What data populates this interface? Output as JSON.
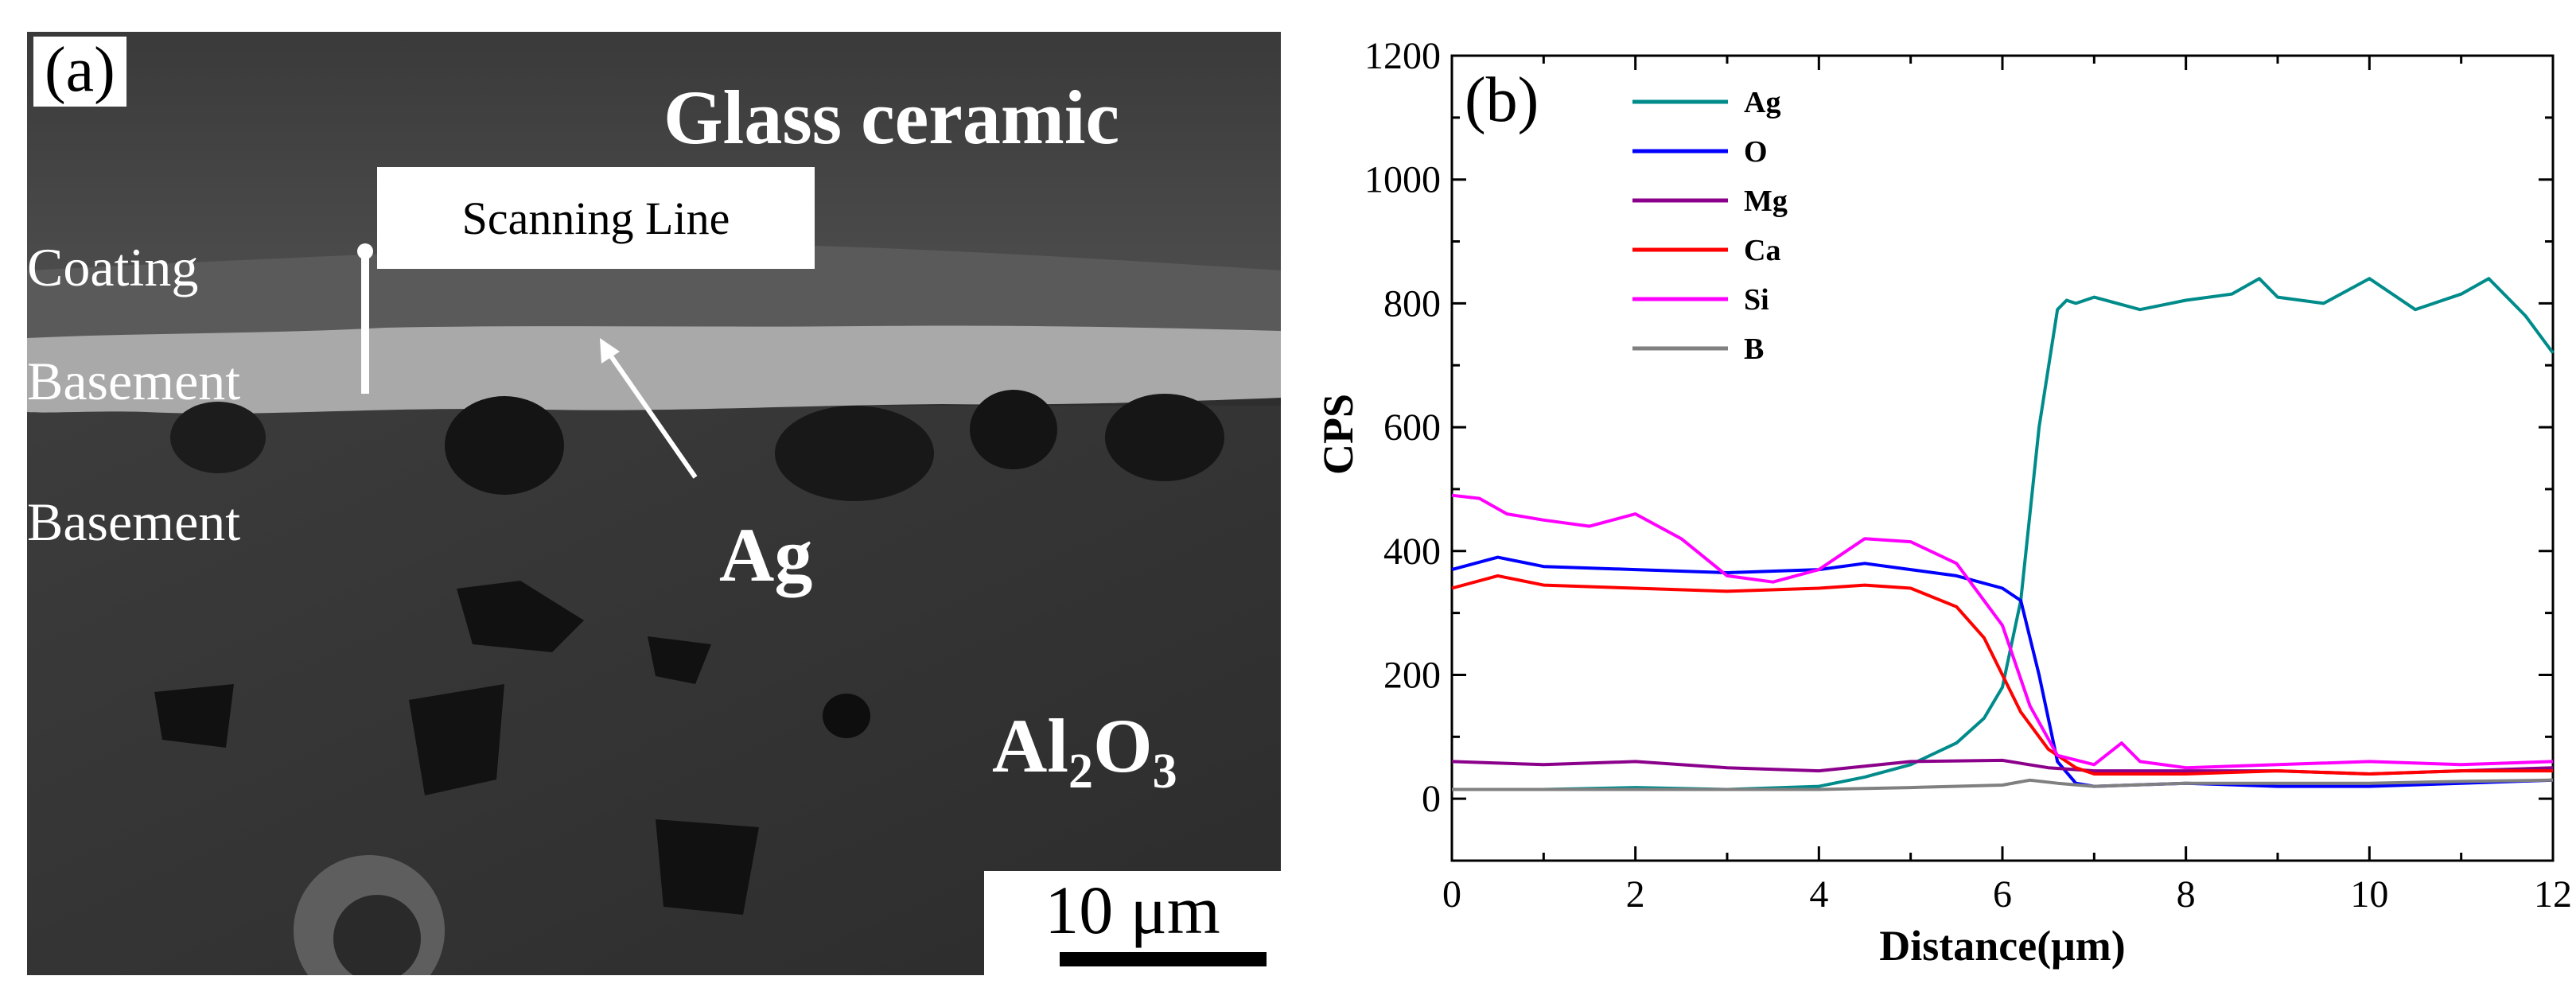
{
  "panel_a": {
    "label": "(a)",
    "glass_ceramic": "Glass ceramic",
    "scanning_line": "Scanning Line",
    "coating": "Coating",
    "basement_1": "Basement",
    "basement_2": "Basement",
    "ag": "Ag",
    "al2o3_al": "Al",
    "al2o3_sub1": "2",
    "al2o3_o": "O",
    "al2o3_sub2": "3",
    "scale_bar": "10 μm"
  },
  "chart_data": {
    "type": "line",
    "panel_label": "(b)",
    "xlabel": "Distance(μm)",
    "ylabel": "CPS",
    "xlim": [
      0,
      12
    ],
    "ylim": [
      -100,
      1200
    ],
    "x_ticks": [
      "0",
      "2",
      "4",
      "6",
      "8",
      "10",
      "12"
    ],
    "y_ticks": [
      "0",
      "200",
      "400",
      "600",
      "800",
      "1000",
      "1200"
    ],
    "legend_position": "top-left",
    "series": [
      {
        "name": "Ag",
        "color": "#008b8b",
        "x": [
          0,
          1,
          2,
          3,
          4,
          4.5,
          5,
          5.5,
          5.8,
          6,
          6.2,
          6.4,
          6.6,
          6.7,
          6.8,
          7,
          7.5,
          8,
          8.5,
          8.8,
          9,
          9.5,
          10,
          10.5,
          11,
          11.3,
          11.7,
          12
        ],
        "y": [
          15,
          15,
          18,
          15,
          20,
          35,
          55,
          90,
          130,
          180,
          320,
          600,
          790,
          805,
          800,
          810,
          790,
          805,
          815,
          840,
          810,
          800,
          840,
          790,
          815,
          840,
          780,
          720
        ]
      },
      {
        "name": "O",
        "color": "#0000ff",
        "x": [
          0,
          0.5,
          1,
          2,
          3,
          4,
          4.5,
          5,
          5.5,
          6,
          6.2,
          6.4,
          6.6,
          6.8,
          7,
          8,
          9,
          10,
          11,
          12
        ],
        "y": [
          370,
          390,
          375,
          370,
          365,
          370,
          380,
          370,
          360,
          340,
          320,
          200,
          60,
          25,
          20,
          25,
          20,
          20,
          25,
          30
        ]
      },
      {
        "name": "Mg",
        "color": "#8b008b",
        "x": [
          0,
          1,
          2,
          3,
          4,
          5,
          6,
          6.5,
          7,
          8,
          9,
          10,
          11,
          12
        ],
        "y": [
          60,
          55,
          60,
          50,
          45,
          60,
          62,
          50,
          45,
          45,
          45,
          40,
          45,
          50
        ]
      },
      {
        "name": "Ca",
        "color": "#ff0000",
        "x": [
          0,
          0.5,
          1,
          2,
          3,
          4,
          4.5,
          5,
          5.5,
          5.8,
          6,
          6.2,
          6.5,
          6.8,
          7,
          8,
          9,
          10,
          11,
          12
        ],
        "y": [
          340,
          360,
          345,
          340,
          335,
          340,
          345,
          340,
          310,
          260,
          200,
          140,
          80,
          50,
          40,
          40,
          45,
          40,
          45,
          45
        ]
      },
      {
        "name": "Si",
        "color": "#ff00ff",
        "x": [
          0,
          0.3,
          0.6,
          1,
          1.5,
          2,
          2.5,
          3,
          3.5,
          4,
          4.5,
          5,
          5.5,
          6,
          6.3,
          6.6,
          7,
          7.3,
          7.5,
          8,
          9,
          10,
          11,
          12
        ],
        "y": [
          490,
          485,
          460,
          450,
          440,
          460,
          420,
          360,
          350,
          370,
          420,
          415,
          380,
          280,
          150,
          70,
          55,
          90,
          60,
          50,
          55,
          60,
          55,
          60
        ]
      },
      {
        "name": "B",
        "color": "#808080",
        "x": [
          0,
          1,
          2,
          3,
          4,
          5,
          6,
          6.3,
          6.6,
          7,
          8,
          9,
          10,
          11,
          12
        ],
        "y": [
          15,
          15,
          15,
          15,
          15,
          18,
          22,
          30,
          25,
          20,
          25,
          25,
          25,
          28,
          30
        ]
      }
    ]
  }
}
